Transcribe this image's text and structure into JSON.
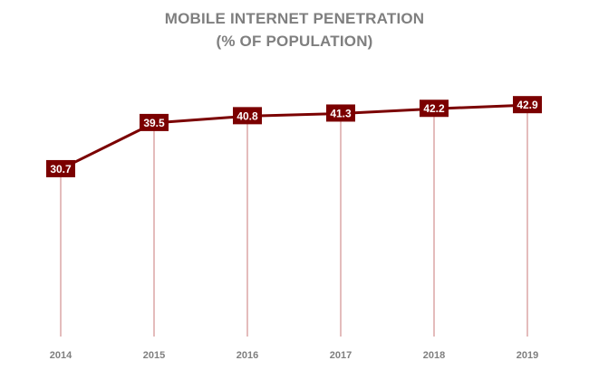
{
  "chart_data": {
    "type": "line",
    "title": "MOBILE INTERNET PENETRATION",
    "subtitle": "(% OF POPULATION)",
    "categories": [
      "2014",
      "2015",
      "2016",
      "2017",
      "2018",
      "2019"
    ],
    "series": [
      {
        "name": "Mobile internet penetration",
        "values": [
          30.7,
          39.5,
          40.8,
          41.3,
          42.2,
          42.9
        ]
      }
    ],
    "data_labels": [
      "30.7",
      "39.5",
      "40.8",
      "41.3",
      "42.2",
      "42.9"
    ],
    "xlabel": "",
    "ylabel": "",
    "ylim": [
      0,
      50
    ],
    "grid": false,
    "legend": "none",
    "colors": {
      "line": "#7b0000",
      "label_bg": "#7b0000",
      "label_text": "#ffffff",
      "drop_line": "#c97a7a",
      "title": "#7f7f7f",
      "tick": "#7f7f7f"
    }
  }
}
